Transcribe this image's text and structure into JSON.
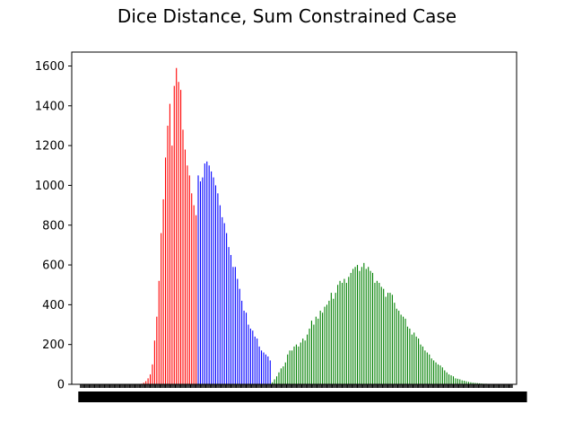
{
  "chart_data": {
    "type": "bar",
    "title": "Dice Distance, Sum Constrained Case",
    "xlabel": "",
    "ylabel": "",
    "ylim": [
      0,
      1670
    ],
    "yticks": [
      0,
      200,
      400,
      600,
      800,
      1000,
      1200,
      1400,
      1600
    ],
    "grid": false,
    "x_tick_labels_visible": false,
    "series": [
      {
        "color": "#ff0000",
        "x": [
          20,
          21,
          22,
          23,
          24,
          25,
          26,
          27,
          28,
          29,
          30,
          31,
          32,
          33,
          34,
          35,
          36,
          37,
          38,
          39,
          40,
          41,
          42,
          43,
          44,
          45
        ],
        "values": [
          3,
          8,
          16,
          30,
          50,
          100,
          220,
          340,
          520,
          760,
          930,
          1140,
          1300,
          1410,
          1200,
          1500,
          1590,
          1520,
          1480,
          1280,
          1180,
          1100,
          1050,
          960,
          900,
          850
        ]
      },
      {
        "color": "#0000ff",
        "x": [
          46,
          47,
          48,
          49,
          50,
          51,
          52,
          53,
          54,
          55,
          56,
          57,
          58,
          59,
          60,
          61,
          62,
          63,
          64,
          65,
          66,
          67,
          68,
          69,
          70,
          71,
          72,
          73,
          74,
          75,
          76,
          77,
          78,
          79
        ],
        "values": [
          1050,
          1020,
          1040,
          1110,
          1120,
          1100,
          1070,
          1040,
          1000,
          960,
          900,
          840,
          810,
          760,
          690,
          650,
          590,
          590,
          530,
          480,
          420,
          370,
          360,
          300,
          280,
          270,
          240,
          230,
          190,
          170,
          160,
          150,
          140,
          120
        ]
      },
      {
        "color": "#008000",
        "x": [
          80,
          81,
          82,
          83,
          84,
          85,
          86,
          87,
          88,
          89,
          90,
          91,
          92,
          93,
          94,
          95,
          96,
          97,
          98,
          99,
          100,
          101,
          102,
          103,
          104,
          105,
          106,
          107,
          108,
          109,
          110,
          111,
          112,
          113,
          114,
          115,
          116,
          117,
          118,
          119,
          120,
          121,
          122,
          123,
          124,
          125,
          126,
          127,
          128,
          129,
          130,
          131,
          132,
          133,
          134,
          135,
          136,
          137,
          138,
          139,
          140,
          141,
          142,
          143,
          144,
          145,
          146,
          147,
          148,
          149,
          150,
          151,
          152,
          153,
          154,
          155,
          156,
          157,
          158,
          159,
          160,
          161,
          162,
          163,
          164,
          165,
          166,
          167,
          168,
          169,
          170,
          171,
          172,
          173,
          174,
          175,
          176,
          177,
          178,
          179,
          180,
          181,
          182,
          183,
          184,
          185,
          186,
          187,
          188,
          189
        ],
        "values": [
          10,
          25,
          40,
          60,
          80,
          90,
          110,
          150,
          170,
          170,
          190,
          200,
          190,
          210,
          230,
          220,
          250,
          280,
          320,
          300,
          340,
          330,
          370,
          360,
          390,
          400,
          420,
          460,
          430,
          460,
          500,
          520,
          510,
          530,
          510,
          540,
          560,
          580,
          590,
          600,
          570,
          590,
          610,
          580,
          590,
          570,
          560,
          510,
          520,
          510,
          490,
          480,
          440,
          460,
          460,
          450,
          410,
          380,
          370,
          350,
          340,
          330,
          290,
          280,
          250,
          260,
          240,
          230,
          200,
          190,
          170,
          160,
          150,
          130,
          120,
          110,
          100,
          95,
          85,
          70,
          60,
          50,
          45,
          40,
          30,
          28,
          25,
          20,
          18,
          15,
          12,
          10,
          8,
          7,
          6,
          5,
          4,
          3,
          3,
          2,
          2,
          2,
          1,
          1,
          1,
          1,
          1,
          1,
          1,
          1
        ]
      }
    ]
  }
}
